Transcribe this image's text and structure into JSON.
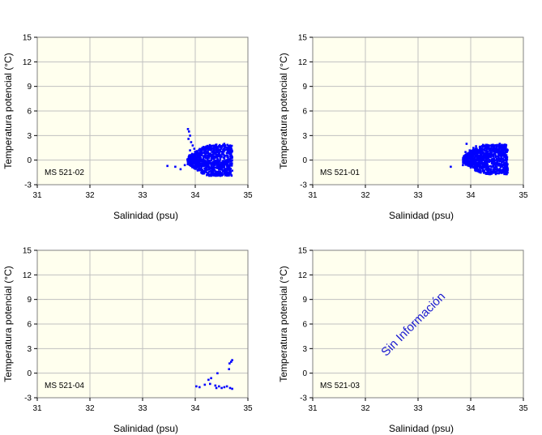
{
  "colors": {
    "plot_bg": "#ffffee",
    "grid": "#c0c0c0",
    "points": "#0000ff",
    "nodata_text": "#1a1ad0"
  },
  "chart_data": [
    {
      "type": "scatter",
      "station": "MS 521-02",
      "xlabel": "Salinidad (psu)",
      "ylabel": "Temperatura potencial (°C)",
      "xlim": [
        31,
        35
      ],
      "ylim": [
        -3,
        15
      ],
      "xticks": [
        "31",
        "32",
        "33",
        "34",
        "35"
      ],
      "yticks": [
        "-3",
        "0",
        "3",
        "6",
        "9",
        "12",
        "15"
      ],
      "grid": true,
      "points": [
        [
          33.47,
          -0.7
        ],
        [
          33.62,
          -0.8
        ],
        [
          33.72,
          -1.1
        ],
        [
          33.8,
          -0.6
        ],
        [
          33.85,
          0.1
        ],
        [
          33.86,
          3.8
        ],
        [
          33.88,
          3.5
        ],
        [
          33.9,
          3.0
        ],
        [
          33.87,
          2.6
        ],
        [
          33.92,
          2.2
        ],
        [
          33.95,
          1.8
        ],
        [
          33.98,
          1.4
        ],
        [
          34.0,
          1.0
        ],
        [
          34.05,
          0.6
        ],
        [
          33.9,
          1.2
        ],
        [
          33.94,
          0.4
        ],
        [
          34.02,
          -0.3
        ],
        [
          34.1,
          -1.0
        ],
        [
          34.2,
          -1.4
        ],
        [
          34.3,
          -1.6
        ],
        [
          34.4,
          -1.7
        ],
        [
          34.5,
          -1.6
        ],
        [
          34.6,
          -1.5
        ],
        [
          34.66,
          -1.2
        ],
        [
          34.68,
          -0.4
        ],
        [
          34.7,
          0.4
        ],
        [
          34.69,
          1.2
        ],
        [
          34.66,
          1.8
        ],
        [
          34.55,
          2.0
        ],
        [
          34.4,
          1.9
        ],
        [
          34.25,
          1.6
        ],
        [
          34.12,
          1.1
        ],
        [
          34.15,
          0.2
        ],
        [
          34.3,
          -0.5
        ],
        [
          34.45,
          0.8
        ],
        [
          34.55,
          -0.8
        ],
        [
          34.35,
          1.0
        ],
        [
          34.2,
          -0.9
        ]
      ],
      "cloud": [
        {
          "sal": [
            33.85,
            34.7
          ],
          "temp": [
            -1.8,
            2.0
          ]
        }
      ]
    },
    {
      "type": "scatter",
      "station": "MS 521-01",
      "xlabel": "Salinidad (psu)",
      "ylabel": "Temperatura potencial (°C)",
      "xlim": [
        31,
        35
      ],
      "ylim": [
        -3,
        15
      ],
      "xticks": [
        "31",
        "32",
        "33",
        "34",
        "35"
      ],
      "yticks": [
        "-3",
        "0",
        "3",
        "6",
        "9",
        "12",
        "15"
      ],
      "grid": true,
      "points": [
        [
          33.62,
          -0.8
        ],
        [
          33.85,
          -0.6
        ],
        [
          33.9,
          1.0
        ],
        [
          33.92,
          2.0
        ],
        [
          33.98,
          1.2
        ],
        [
          34.05,
          1.5
        ],
        [
          34.1,
          1.7
        ],
        [
          34.2,
          0.8
        ],
        [
          34.0,
          -0.9
        ],
        [
          34.1,
          -1.3
        ],
        [
          34.25,
          -1.5
        ],
        [
          34.4,
          -1.5
        ],
        [
          34.55,
          -1.2
        ],
        [
          34.62,
          -0.6
        ],
        [
          34.68,
          0.3
        ],
        [
          34.69,
          1.3
        ],
        [
          34.65,
          1.9
        ],
        [
          34.55,
          2.0
        ],
        [
          34.45,
          1.6
        ],
        [
          34.35,
          0.6
        ],
        [
          34.2,
          -0.4
        ],
        [
          34.5,
          0.1
        ],
        [
          34.3,
          1.0
        ]
      ],
      "cloud": [
        {
          "sal": [
            33.85,
            34.7
          ],
          "temp": [
            -1.6,
            2.0
          ]
        }
      ]
    },
    {
      "type": "scatter",
      "station": "MS 521-04",
      "xlabel": "Salinidad (psu)",
      "ylabel": "Temperatura potencial (°C)",
      "xlim": [
        31,
        35
      ],
      "ylim": [
        -3,
        15
      ],
      "xticks": [
        "31",
        "32",
        "33",
        "34",
        "35"
      ],
      "yticks": [
        "-3",
        "0",
        "3",
        "6",
        "9",
        "12",
        "15"
      ],
      "grid": true,
      "points": [
        [
          34.02,
          -1.6
        ],
        [
          34.08,
          -1.7
        ],
        [
          34.18,
          -1.4
        ],
        [
          34.25,
          -0.8
        ],
        [
          34.3,
          -0.6
        ],
        [
          34.28,
          -1.3
        ],
        [
          34.38,
          -1.5
        ],
        [
          34.4,
          -1.8
        ],
        [
          34.45,
          -1.6
        ],
        [
          34.5,
          -1.8
        ],
        [
          34.55,
          -1.7
        ],
        [
          34.6,
          -1.6
        ],
        [
          34.42,
          0.0
        ],
        [
          34.64,
          0.5
        ],
        [
          34.65,
          1.2
        ],
        [
          34.68,
          1.4
        ],
        [
          34.7,
          1.6
        ],
        [
          34.7,
          -1.9
        ],
        [
          34.66,
          -1.8
        ]
      ],
      "cloud": []
    },
    {
      "type": "scatter",
      "station": "MS 521-03",
      "xlabel": "Salinidad (psu)",
      "ylabel": "Temperatura potencial (°C)",
      "xlim": [
        31,
        35
      ],
      "ylim": [
        -3,
        15
      ],
      "xticks": [
        "31",
        "32",
        "33",
        "34",
        "35"
      ],
      "yticks": [
        "-3",
        "0",
        "3",
        "6",
        "9",
        "12",
        "15"
      ],
      "grid": true,
      "points": [],
      "cloud": [],
      "annotation": "Sin Información"
    }
  ]
}
